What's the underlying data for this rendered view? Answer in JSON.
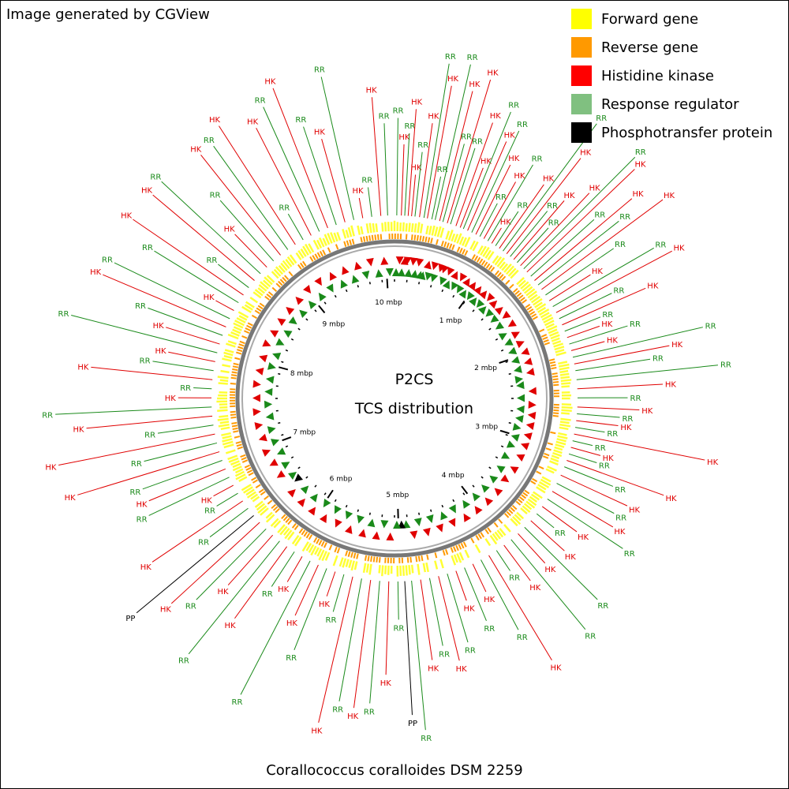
{
  "header_text": "Image generated by CGView",
  "footer_text": "Corallococcus coralloides DSM 2259",
  "center_title": "P2CS",
  "center_subtitle": "TCS distribution",
  "legend": [
    {
      "label": "Forward gene",
      "color": "#ffff00"
    },
    {
      "label": "Reverse gene",
      "color": "#ff9900"
    },
    {
      "label": "Histidine kinase",
      "color": "#ff0000"
    },
    {
      "label": "Response regulator",
      "color": "#80c080"
    },
    {
      "label": "Phosphotransfer protein",
      "color": "#000000"
    }
  ],
  "colors": {
    "hk": "#e00000",
    "rr": "#1a8a1a",
    "pp": "#000000",
    "forward": "#ffff33",
    "reverse": "#ff9a00",
    "backbone": "#777777"
  },
  "genome_length_mbp": 10.1,
  "ruler_labels": [
    "1 mbp",
    "2 mbp",
    "3 mbp",
    "4 mbp",
    "5 mbp",
    "6 mbp",
    "7 mbp",
    "8 mbp",
    "9 mbp",
    "10 mbp"
  ],
  "feature_tags": [
    {
      "pos": 0.02,
      "type": "RR"
    },
    {
      "pos": 0.06,
      "type": "HK"
    },
    {
      "pos": 0.09,
      "type": "RR"
    },
    {
      "pos": 0.12,
      "type": "HK"
    },
    {
      "pos": 0.15,
      "type": "HK"
    },
    {
      "pos": 0.18,
      "type": "RR"
    },
    {
      "pos": 0.22,
      "type": "HK"
    },
    {
      "pos": 0.26,
      "type": "RR"
    },
    {
      "pos": 0.29,
      "type": "HK"
    },
    {
      "pos": 0.33,
      "type": "RR"
    },
    {
      "pos": 0.36,
      "type": "RR"
    },
    {
      "pos": 0.4,
      "type": "HK"
    },
    {
      "pos": 0.43,
      "type": "RR"
    },
    {
      "pos": 0.47,
      "type": "HK"
    },
    {
      "pos": 0.5,
      "type": "RR"
    },
    {
      "pos": 0.55,
      "type": "HK"
    },
    {
      "pos": 0.59,
      "type": "HK"
    },
    {
      "pos": 0.62,
      "type": "RR"
    },
    {
      "pos": 0.66,
      "type": "HK"
    },
    {
      "pos": 0.7,
      "type": "RR"
    },
    {
      "pos": 0.74,
      "type": "HK"
    },
    {
      "pos": 0.78,
      "type": "RR"
    },
    {
      "pos": 0.82,
      "type": "HK"
    },
    {
      "pos": 0.86,
      "type": "RR"
    },
    {
      "pos": 0.9,
      "type": "HK"
    },
    {
      "pos": 0.94,
      "type": "RR"
    },
    {
      "pos": 0.98,
      "type": "HK"
    },
    {
      "pos": 1.02,
      "type": "RR"
    },
    {
      "pos": 1.06,
      "type": "HK"
    },
    {
      "pos": 1.1,
      "type": "RR"
    },
    {
      "pos": 1.14,
      "type": "HK"
    },
    {
      "pos": 1.18,
      "type": "RR"
    },
    {
      "pos": 1.22,
      "type": "HK"
    },
    {
      "pos": 1.26,
      "type": "RR"
    },
    {
      "pos": 1.3,
      "type": "HK"
    },
    {
      "pos": 1.35,
      "type": "RR"
    },
    {
      "pos": 1.4,
      "type": "HK"
    },
    {
      "pos": 1.45,
      "type": "RR"
    },
    {
      "pos": 1.5,
      "type": "HK"
    },
    {
      "pos": 1.56,
      "type": "RR"
    },
    {
      "pos": 1.62,
      "type": "HK"
    },
    {
      "pos": 1.68,
      "type": "RR"
    },
    {
      "pos": 1.74,
      "type": "HK"
    },
    {
      "pos": 1.8,
      "type": "RR"
    },
    {
      "pos": 1.86,
      "type": "HK"
    },
    {
      "pos": 1.92,
      "type": "RR"
    },
    {
      "pos": 1.98,
      "type": "HK"
    },
    {
      "pos": 2.04,
      "type": "RR"
    },
    {
      "pos": 2.1,
      "type": "HK"
    },
    {
      "pos": 2.16,
      "type": "RR"
    },
    {
      "pos": 2.22,
      "type": "HK"
    },
    {
      "pos": 2.28,
      "type": "RR"
    },
    {
      "pos": 2.36,
      "type": "RR"
    },
    {
      "pos": 2.44,
      "type": "HK"
    },
    {
      "pos": 2.52,
      "type": "RR"
    },
    {
      "pos": 2.6,
      "type": "HK"
    },
    {
      "pos": 2.66,
      "type": "RR"
    },
    {
      "pos": 2.72,
      "type": "HK"
    },
    {
      "pos": 2.78,
      "type": "RR"
    },
    {
      "pos": 2.84,
      "type": "HK"
    },
    {
      "pos": 2.9,
      "type": "RR"
    },
    {
      "pos": 2.96,
      "type": "HK"
    },
    {
      "pos": 3.02,
      "type": "RR"
    },
    {
      "pos": 3.08,
      "type": "HK"
    },
    {
      "pos": 3.14,
      "type": "RR"
    },
    {
      "pos": 3.22,
      "type": "HK"
    },
    {
      "pos": 3.3,
      "type": "RR"
    },
    {
      "pos": 3.38,
      "type": "HK"
    },
    {
      "pos": 3.46,
      "type": "RR"
    },
    {
      "pos": 3.54,
      "type": "HK"
    },
    {
      "pos": 3.62,
      "type": "RR"
    },
    {
      "pos": 3.7,
      "type": "HK"
    },
    {
      "pos": 3.78,
      "type": "RR"
    },
    {
      "pos": 3.86,
      "type": "HK"
    },
    {
      "pos": 3.94,
      "type": "RR"
    },
    {
      "pos": 4.02,
      "type": "HK"
    },
    {
      "pos": 4.1,
      "type": "RR"
    },
    {
      "pos": 4.18,
      "type": "HK"
    },
    {
      "pos": 4.26,
      "type": "RR"
    },
    {
      "pos": 4.34,
      "type": "HK"
    },
    {
      "pos": 4.42,
      "type": "RR"
    },
    {
      "pos": 4.5,
      "type": "HK"
    },
    {
      "pos": 4.58,
      "type": "RR"
    },
    {
      "pos": 4.66,
      "type": "HK"
    },
    {
      "pos": 4.74,
      "type": "RR"
    },
    {
      "pos": 4.82,
      "type": "HK"
    },
    {
      "pos": 4.9,
      "type": "RR"
    },
    {
      "pos": 4.96,
      "type": "PP"
    },
    {
      "pos": 5.02,
      "type": "RR"
    },
    {
      "pos": 5.1,
      "type": "HK"
    },
    {
      "pos": 5.18,
      "type": "RR"
    },
    {
      "pos": 5.26,
      "type": "HK"
    },
    {
      "pos": 5.34,
      "type": "RR"
    },
    {
      "pos": 5.42,
      "type": "HK"
    },
    {
      "pos": 5.5,
      "type": "RR"
    },
    {
      "pos": 5.58,
      "type": "HK"
    },
    {
      "pos": 5.66,
      "type": "RR"
    },
    {
      "pos": 5.74,
      "type": "HK"
    },
    {
      "pos": 5.82,
      "type": "RR"
    },
    {
      "pos": 5.9,
      "type": "HK"
    },
    {
      "pos": 5.98,
      "type": "RR"
    },
    {
      "pos": 6.06,
      "type": "HK"
    },
    {
      "pos": 6.14,
      "type": "RR"
    },
    {
      "pos": 6.22,
      "type": "HK"
    },
    {
      "pos": 6.3,
      "type": "RR"
    },
    {
      "pos": 6.38,
      "type": "HK"
    },
    {
      "pos": 6.46,
      "type": "PP"
    },
    {
      "pos": 6.54,
      "type": "RR"
    },
    {
      "pos": 6.62,
      "type": "HK"
    },
    {
      "pos": 6.7,
      "type": "RR"
    },
    {
      "pos": 6.78,
      "type": "HK"
    },
    {
      "pos": 6.86,
      "type": "RR"
    },
    {
      "pos": 6.94,
      "type": "HK"
    },
    {
      "pos": 7.02,
      "type": "RR"
    },
    {
      "pos": 7.1,
      "type": "HK"
    },
    {
      "pos": 7.18,
      "type": "RR"
    },
    {
      "pos": 7.26,
      "type": "HK"
    },
    {
      "pos": 7.34,
      "type": "RR"
    },
    {
      "pos": 7.42,
      "type": "HK"
    },
    {
      "pos": 7.5,
      "type": "RR"
    },
    {
      "pos": 7.58,
      "type": "HK"
    },
    {
      "pos": 7.66,
      "type": "RR"
    },
    {
      "pos": 7.74,
      "type": "HK"
    },
    {
      "pos": 7.82,
      "type": "RR"
    },
    {
      "pos": 7.9,
      "type": "HK"
    },
    {
      "pos": 7.98,
      "type": "RR"
    },
    {
      "pos": 8.06,
      "type": "HK"
    },
    {
      "pos": 8.14,
      "type": "RR"
    },
    {
      "pos": 8.22,
      "type": "HK"
    },
    {
      "pos": 8.3,
      "type": "RR"
    },
    {
      "pos": 8.38,
      "type": "HK"
    },
    {
      "pos": 8.46,
      "type": "RR"
    },
    {
      "pos": 8.54,
      "type": "HK"
    },
    {
      "pos": 8.62,
      "type": "RR"
    },
    {
      "pos": 8.7,
      "type": "HK"
    },
    {
      "pos": 8.78,
      "type": "RR"
    },
    {
      "pos": 8.86,
      "type": "HK"
    },
    {
      "pos": 8.94,
      "type": "RR"
    },
    {
      "pos": 9.02,
      "type": "HK"
    },
    {
      "pos": 9.1,
      "type": "RR"
    },
    {
      "pos": 9.18,
      "type": "HK"
    },
    {
      "pos": 9.26,
      "type": "RR"
    },
    {
      "pos": 9.34,
      "type": "HK"
    },
    {
      "pos": 9.42,
      "type": "RR"
    },
    {
      "pos": 9.5,
      "type": "HK"
    },
    {
      "pos": 9.58,
      "type": "RR"
    },
    {
      "pos": 9.66,
      "type": "HK"
    },
    {
      "pos": 9.74,
      "type": "RR"
    },
    {
      "pos": 9.82,
      "type": "HK"
    },
    {
      "pos": 9.9,
      "type": "RR"
    },
    {
      "pos": 9.98,
      "type": "HK"
    },
    {
      "pos": 10.04,
      "type": "RR"
    }
  ]
}
